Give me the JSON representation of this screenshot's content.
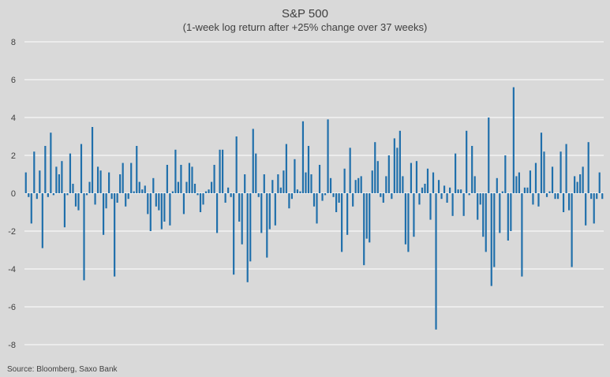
{
  "chart_data": {
    "type": "bar",
    "title": "S&P 500",
    "subtitle": "(1-week log return after +25% change over 37 weeks)",
    "xlabel": "",
    "ylabel": "",
    "ylim": [
      -8,
      8
    ],
    "yticks": [
      8,
      6,
      4,
      2,
      0,
      -2,
      -4,
      -6,
      -8
    ],
    "grid": true,
    "legend": "none",
    "color": "#1f6fab",
    "series": [
      {
        "name": "1-week log return",
        "values": [
          1.1,
          -0.2,
          -1.6,
          2.2,
          -0.3,
          1.2,
          -2.9,
          2.5,
          -0.2,
          3.2,
          -0.1,
          1.4,
          1.0,
          1.7,
          -1.8,
          -0.1,
          2.1,
          0.5,
          -0.7,
          -0.9,
          2.6,
          -4.6,
          -0.1,
          0.6,
          3.5,
          -0.6,
          1.4,
          1.2,
          -2.2,
          -0.8,
          1.1,
          -0.3,
          -4.4,
          -0.5,
          1.0,
          1.6,
          -0.7,
          -0.3,
          1.6,
          0.1,
          2.5,
          0.6,
          0.2,
          0.4,
          -1.1,
          -2.0,
          0.8,
          -0.7,
          -0.9,
          -1.9,
          -1.5,
          1.5,
          -1.7,
          0.1,
          2.3,
          0.6,
          1.5,
          -1.1,
          0.6,
          1.6,
          1.4,
          0.5,
          -0.1,
          -1.0,
          -0.6,
          0.1,
          0.2,
          0.6,
          1.5,
          -2.1,
          2.3,
          2.3,
          -0.5,
          0.3,
          -0.2,
          -4.3,
          3.0,
          -1.5,
          -2.7,
          1.0,
          -4.7,
          -3.6,
          3.4,
          2.1,
          -0.2,
          -2.1,
          1.0,
          -3.4,
          -1.9,
          0.7,
          -1.7,
          1.0,
          0.3,
          1.2,
          2.6,
          -0.8,
          -0.3,
          1.8,
          0.2,
          0.1,
          3.8,
          1.1,
          2.5,
          1.0,
          -0.7,
          -1.6,
          1.5,
          -0.4,
          -0.1,
          3.9,
          0.8,
          -0.2,
          -1.0,
          -0.5,
          -3.1,
          1.3,
          -2.2,
          2.4,
          -0.7,
          0.7,
          0.8,
          0.9,
          -3.8,
          -2.4,
          -2.6,
          1.2,
          2.7,
          1.7,
          -0.2,
          -0.5,
          0.9,
          2.0,
          -0.3,
          2.9,
          2.4,
          3.3,
          0.9,
          -2.7,
          -3.1,
          1.6,
          -2.3,
          1.7,
          -0.6,
          0.3,
          0.5,
          1.3,
          -1.4,
          1.1,
          -7.2,
          0.7,
          -0.3,
          0.4,
          -0.5,
          0.3,
          -1.2,
          2.1,
          0.2,
          0.2,
          -1.2,
          3.3,
          -0.1,
          2.5,
          0.9,
          -1.4,
          -0.6,
          -2.3,
          -3.1,
          4.0,
          -4.9,
          -3.9,
          0.8,
          -2.1,
          0.1,
          2.0,
          -2.5,
          -2.0,
          5.6,
          0.9,
          1.1,
          -4.4,
          0.3,
          0.3,
          1.2,
          -0.6,
          1.6,
          -0.7,
          3.2,
          2.2,
          -0.2,
          0.1,
          1.4,
          -0.3,
          -0.3,
          2.2,
          -1.0,
          2.6,
          -0.9,
          -3.9,
          0.9,
          0.6,
          1.0,
          1.4,
          -1.7,
          2.7,
          -0.3,
          -1.6,
          -0.3,
          1.1,
          -0.3
        ]
      }
    ]
  },
  "source": "Source: Bloomberg, Saxo Bank"
}
